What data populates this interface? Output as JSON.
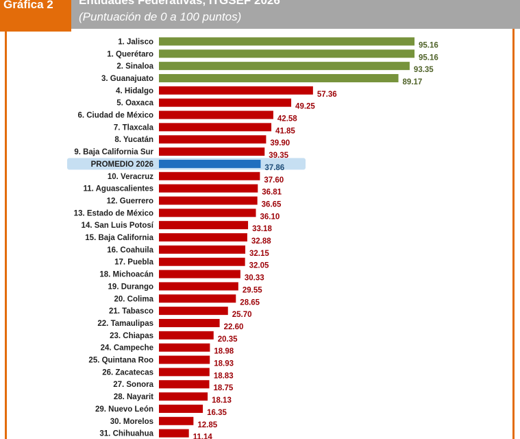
{
  "header": {
    "tag": "Gráfica 2",
    "title": "Entidades Federativas, ITGSEF 2026",
    "subtitle": "(Puntuación de 0 a 100 puntos)"
  },
  "colors": {
    "top": "#77933c",
    "other": "#c00000",
    "average": "#1f6fbf",
    "average_highlight": "#c6dff2",
    "top_value_text": "#4f6228",
    "other_value_text": "#9c0006",
    "average_value_text": "#1f4e79"
  },
  "chart_data": {
    "type": "bar",
    "orientation": "horizontal",
    "xlim": [
      0,
      100
    ],
    "grid": false,
    "categories": [
      "1. Jalisco",
      "1. Querétaro",
      "2. Sinaloa",
      "3. Guanajuato",
      "4. Hidalgo",
      "5. Oaxaca",
      "6. Ciudad de México",
      "7. Tlaxcala",
      "8. Yucatán",
      "9. Baja California Sur",
      "PROMEDIO 2026",
      "10. Veracruz",
      "11. Aguascalientes",
      "12. Guerrero",
      "13. Estado de México",
      "14. San Luis Potosí",
      "15. Baja California",
      "16. Coahuila",
      "17. Puebla",
      "18. Michoacán",
      "19. Durango",
      "20. Colima",
      "21. Tabasco",
      "22. Tamaulipas",
      "23. Chiapas",
      "24. Campeche",
      "25. Quintana Roo",
      "26. Zacatecas",
      "27. Sonora",
      "28. Nayarit",
      "29. Nuevo León",
      "30. Morelos",
      "31. Chihuahua"
    ],
    "values": [
      95.16,
      95.16,
      93.35,
      89.17,
      57.36,
      49.25,
      42.58,
      41.85,
      39.9,
      39.35,
      37.86,
      37.6,
      36.81,
      36.65,
      36.1,
      33.18,
      32.88,
      32.15,
      32.05,
      30.33,
      29.55,
      28.65,
      25.7,
      22.6,
      20.35,
      18.98,
      18.93,
      18.83,
      18.75,
      18.13,
      16.35,
      12.85,
      11.14
    ],
    "value_labels": [
      "95.16",
      "95.16",
      "93.35",
      "89.17",
      "57.36",
      "49.25",
      "42.58",
      "41.85",
      "39.90",
      "39.35",
      "37.86",
      "37.60",
      "36.81",
      "36.65",
      "36.10",
      "33.18",
      "32.88",
      "32.15",
      "32.05",
      "30.33",
      "29.55",
      "28.65",
      "25.70",
      "22.60",
      "20.35",
      "18.98",
      "18.93",
      "18.83",
      "18.75",
      "18.13",
      "16.35",
      "12.85",
      "11.14"
    ],
    "highlight_group": [
      0,
      1,
      2,
      3
    ],
    "average_index": 10
  }
}
